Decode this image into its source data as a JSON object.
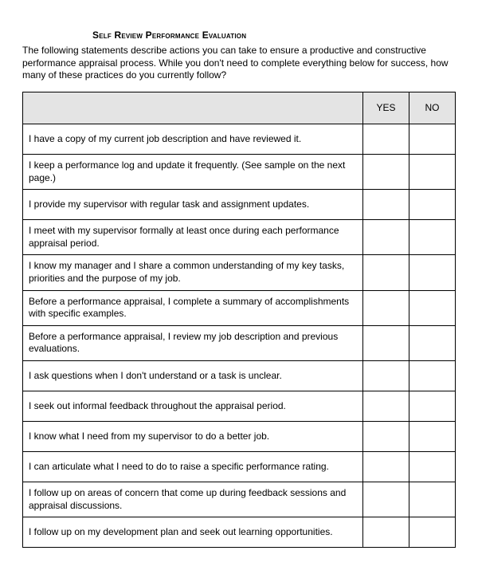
{
  "title": "Self Review Performance Evaluation",
  "intro": "The following statements describe actions you can take to ensure a productive and constructive performance appraisal process. While you don't need to complete everything below for success, how many of these practices do you currently follow?",
  "columns": {
    "statement": "",
    "yes": "YES",
    "no": "NO"
  },
  "rows": [
    "I have a copy of my current job description and have reviewed it.",
    "I keep a performance log and update it frequently. (See sample on the next page.)",
    "I provide my supervisor with regular task and assignment updates.",
    "I meet with my supervisor formally at least once during each performance appraisal period.",
    "I know my manager and I share a common understanding of my key tasks, priorities and the purpose of my job.",
    "Before a performance appraisal, I complete a summary of accomplishments with specific examples.",
    "Before a performance appraisal, I review my job description and previous evaluations.",
    "I ask questions when I don't understand or a task is unclear.",
    "I seek out informal feedback throughout the appraisal period.",
    "I know what I need from my supervisor to do a better job.",
    "I can articulate what I need to do to raise a specific performance rating.",
    "I follow up on areas of concern that come up during feedback sessions and appraisal discussions.",
    "I follow up on my development plan and seek out learning opportunities."
  ],
  "styling": {
    "header_bg": "#e4e4e4",
    "border_color": "#000000",
    "font_family": "Arial",
    "body_fontsize": 12,
    "title_fontsize": 12,
    "col_widths": {
      "statement": "auto",
      "yes": 58,
      "no": 58
    },
    "page_bg": "#ffffff",
    "text_color": "#000000"
  }
}
